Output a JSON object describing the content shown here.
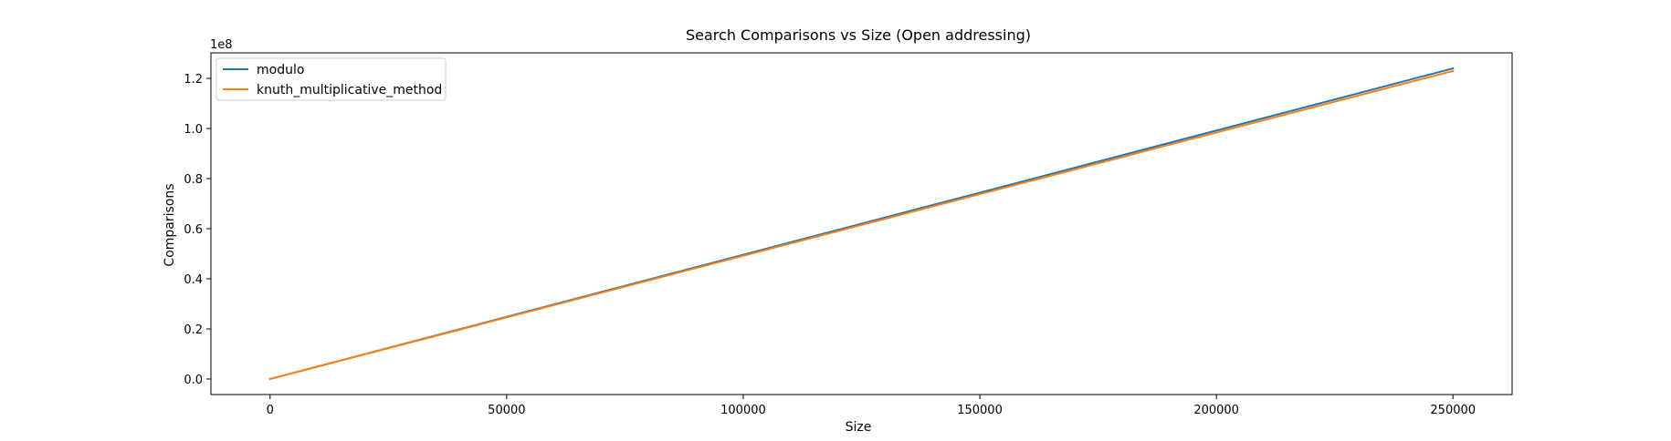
{
  "chart_data": {
    "type": "line",
    "title": "Search Comparisons vs Size (Open addressing)",
    "xlabel": "Size",
    "ylabel": "Comparisons",
    "y_scale_label": "1e8",
    "xlim": [
      -12500,
      262500
    ],
    "ylim": [
      -0.062,
      1.302
    ],
    "y_multiplier": 100000000,
    "xticks": [
      0,
      50000,
      100000,
      150000,
      200000,
      250000
    ],
    "xtick_labels": [
      "0",
      "50000",
      "100000",
      "150000",
      "200000",
      "250000"
    ],
    "yticks": [
      0.0,
      0.2,
      0.4,
      0.6,
      0.8,
      1.0,
      1.2
    ],
    "ytick_labels": [
      "0.0",
      "0.2",
      "0.4",
      "0.6",
      "0.8",
      "1.0",
      "1.2"
    ],
    "grid": false,
    "legend_position": "upper-left",
    "series": [
      {
        "name": "modulo",
        "color": "#1f77b4",
        "x": [
          0,
          50000,
          100000,
          150000,
          200000,
          250000
        ],
        "y": [
          0.0,
          0.248,
          0.496,
          0.744,
          0.992,
          1.24
        ]
      },
      {
        "name": "knuth_multiplicative_method",
        "color": "#ff7f0e",
        "x": [
          0,
          50000,
          100000,
          150000,
          200000,
          250000
        ],
        "y": [
          0.0,
          0.246,
          0.492,
          0.738,
          0.984,
          1.23
        ]
      }
    ]
  }
}
